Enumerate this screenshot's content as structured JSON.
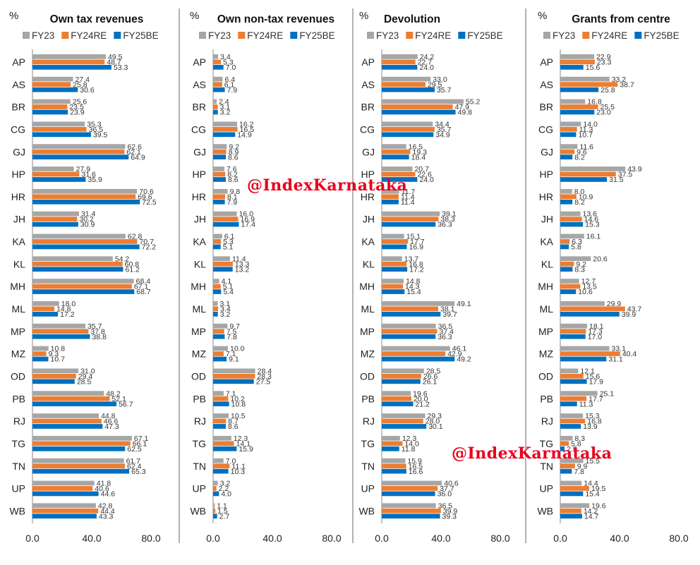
{
  "watermark_text": "@IndexKarnataka",
  "colors": {
    "FY23": "#a6a6a6",
    "FY24RE": "#ed7d31",
    "FY25BE": "#0070c0"
  },
  "chart_data": [
    {
      "type": "bar",
      "orientation": "horizontal",
      "title": "Own tax revenues",
      "unit_label": "%",
      "categories": [
        "AP",
        "AS",
        "BR",
        "CG",
        "GJ",
        "HP",
        "HR",
        "JH",
        "KA",
        "KL",
        "MH",
        "ML",
        "MP",
        "MZ",
        "OD",
        "PB",
        "RJ",
        "TG",
        "TN",
        "UP",
        "WB"
      ],
      "series": [
        {
          "name": "FY23",
          "values": [
            49.5,
            27.4,
            25.6,
            35.3,
            62.6,
            27.9,
            70.6,
            31.4,
            62.8,
            54.2,
            68.4,
            18.0,
            35.7,
            10.8,
            31.0,
            48.2,
            44.8,
            67.1,
            61.7,
            41.8,
            42.8
          ]
        },
        {
          "name": "FY24RE",
          "values": [
            48.7,
            25.8,
            23.5,
            36.5,
            62.1,
            31.6,
            69.6,
            30.2,
            70.7,
            60.8,
            67.1,
            14.8,
            37.8,
            9.3,
            29.4,
            52.1,
            46.6,
            66.1,
            62.4,
            40.6,
            44.4
          ]
        },
        {
          "name": "FY25BE",
          "values": [
            53.3,
            30.6,
            23.9,
            39.5,
            64.9,
            35.9,
            72.5,
            30.9,
            72.2,
            61.2,
            68.7,
            17.2,
            38.8,
            10.7,
            28.5,
            56.7,
            47.3,
            62.5,
            65.3,
            44.6,
            43.3
          ]
        }
      ],
      "x_ticks": [
        "0.0",
        "40.0",
        "80.0"
      ],
      "xlim": [
        0,
        80
      ],
      "legend": "top"
    },
    {
      "type": "bar",
      "orientation": "horizontal",
      "title": "Own non-tax revenues",
      "unit_label": "%",
      "categories": [
        "AP",
        "AS",
        "BR",
        "CG",
        "GJ",
        "HP",
        "HR",
        "JH",
        "KA",
        "KL",
        "MH",
        "ML",
        "MP",
        "MZ",
        "OD",
        "PB",
        "RJ",
        "TG",
        "TN",
        "UP",
        "WB"
      ],
      "series": [
        {
          "name": "FY23",
          "values": [
            3.4,
            6.4,
            2.4,
            16.2,
            9.2,
            7.6,
            9.8,
            16.0,
            6.1,
            11.4,
            4.1,
            3.1,
            9.7,
            10.0,
            28.4,
            7.1,
            10.5,
            12.3,
            7.0,
            3.2,
            1.1
          ]
        },
        {
          "name": "FY24RE",
          "values": [
            5.3,
            6.1,
            3.1,
            16.5,
            8.9,
            8.2,
            8.1,
            16.9,
            5.3,
            13.3,
            5.1,
            3.4,
            7.5,
            7.1,
            28.3,
            10.2,
            8.7,
            14.1,
            11.1,
            2.2,
            1.5
          ]
        },
        {
          "name": "FY25BE",
          "values": [
            7.0,
            7.9,
            3.2,
            14.9,
            8.6,
            8.6,
            7.9,
            17.4,
            5.1,
            13.2,
            5.4,
            3.2,
            7.8,
            9.1,
            27.5,
            10.8,
            8.6,
            15.9,
            10.3,
            4.0,
            2.7
          ]
        }
      ],
      "x_ticks": [
        "0.0",
        "40.0",
        "80.0"
      ],
      "xlim": [
        0,
        80
      ],
      "legend": "top"
    },
    {
      "type": "bar",
      "orientation": "horizontal",
      "title": "Devolution",
      "unit_label": "%",
      "categories": [
        "AP",
        "AS",
        "BR",
        "CG",
        "GJ",
        "HP",
        "HR",
        "JH",
        "KA",
        "KL",
        "MH",
        "ML",
        "MP",
        "MZ",
        "OD",
        "PB",
        "RJ",
        "TG",
        "TN",
        "UP",
        "WB"
      ],
      "series": [
        {
          "name": "FY23",
          "values": [
            24.2,
            33.0,
            55.2,
            34.4,
            16.5,
            20.7,
            11.7,
            39.1,
            15.1,
            13.7,
            14.8,
            49.1,
            36.5,
            46.1,
            28.5,
            19.6,
            29.3,
            12.3,
            15.9,
            40.6,
            36.5
          ]
        },
        {
          "name": "FY24RE",
          "values": [
            22.7,
            29.5,
            47.9,
            35.7,
            19.3,
            22.6,
            11.4,
            38.3,
            17.7,
            16.8,
            14.3,
            38.1,
            37.4,
            42.9,
            26.6,
            20.0,
            28.0,
            14.0,
            16.5,
            37.7,
            39.9
          ]
        },
        {
          "name": "FY25BE",
          "values": [
            24.0,
            35.7,
            49.8,
            34.9,
            18.4,
            24.0,
            11.4,
            36.3,
            16.9,
            17.2,
            15.4,
            39.7,
            36.3,
            49.2,
            26.1,
            21.2,
            30.1,
            11.8,
            16.6,
            36.0,
            39.3
          ]
        }
      ],
      "x_ticks": [
        "0.0",
        "40.0",
        "80.0"
      ],
      "xlim": [
        0,
        80
      ],
      "legend": "top"
    },
    {
      "type": "bar",
      "orientation": "horizontal",
      "title": "Grants from centre",
      "unit_label": "%",
      "categories": [
        "AP",
        "AS",
        "BR",
        "CG",
        "GJ",
        "HP",
        "HR",
        "JH",
        "KA",
        "KL",
        "MH",
        "ML",
        "MP",
        "MZ",
        "OD",
        "PB",
        "RJ",
        "TG",
        "TN",
        "UP",
        "WB"
      ],
      "series": [
        {
          "name": "FY23",
          "values": [
            22.9,
            33.2,
            16.8,
            14.0,
            11.6,
            43.9,
            8.0,
            13.6,
            16.1,
            20.6,
            12.7,
            29.9,
            18.1,
            33.1,
            12.1,
            25.1,
            15.3,
            8.3,
            15.5,
            14.4,
            19.6
          ]
        },
        {
          "name": "FY24RE",
          "values": [
            23.3,
            38.7,
            25.5,
            11.3,
            9.6,
            37.5,
            10.9,
            14.6,
            6.3,
            9.2,
            13.5,
            43.7,
            17.3,
            40.4,
            15.6,
            17.7,
            16.8,
            5.8,
            9.9,
            19.5,
            14.2
          ]
        },
        {
          "name": "FY25BE",
          "values": [
            15.6,
            25.8,
            23.0,
            10.7,
            8.2,
            31.5,
            8.2,
            15.3,
            5.8,
            8.3,
            10.6,
            39.9,
            17.0,
            31.1,
            17.9,
            11.3,
            13.9,
            2.9,
            7.8,
            15.4,
            14.7
          ]
        }
      ],
      "x_ticks": [
        "0.0",
        "40.0",
        "80.0"
      ],
      "xlim": [
        0,
        80
      ],
      "legend": "top"
    }
  ]
}
